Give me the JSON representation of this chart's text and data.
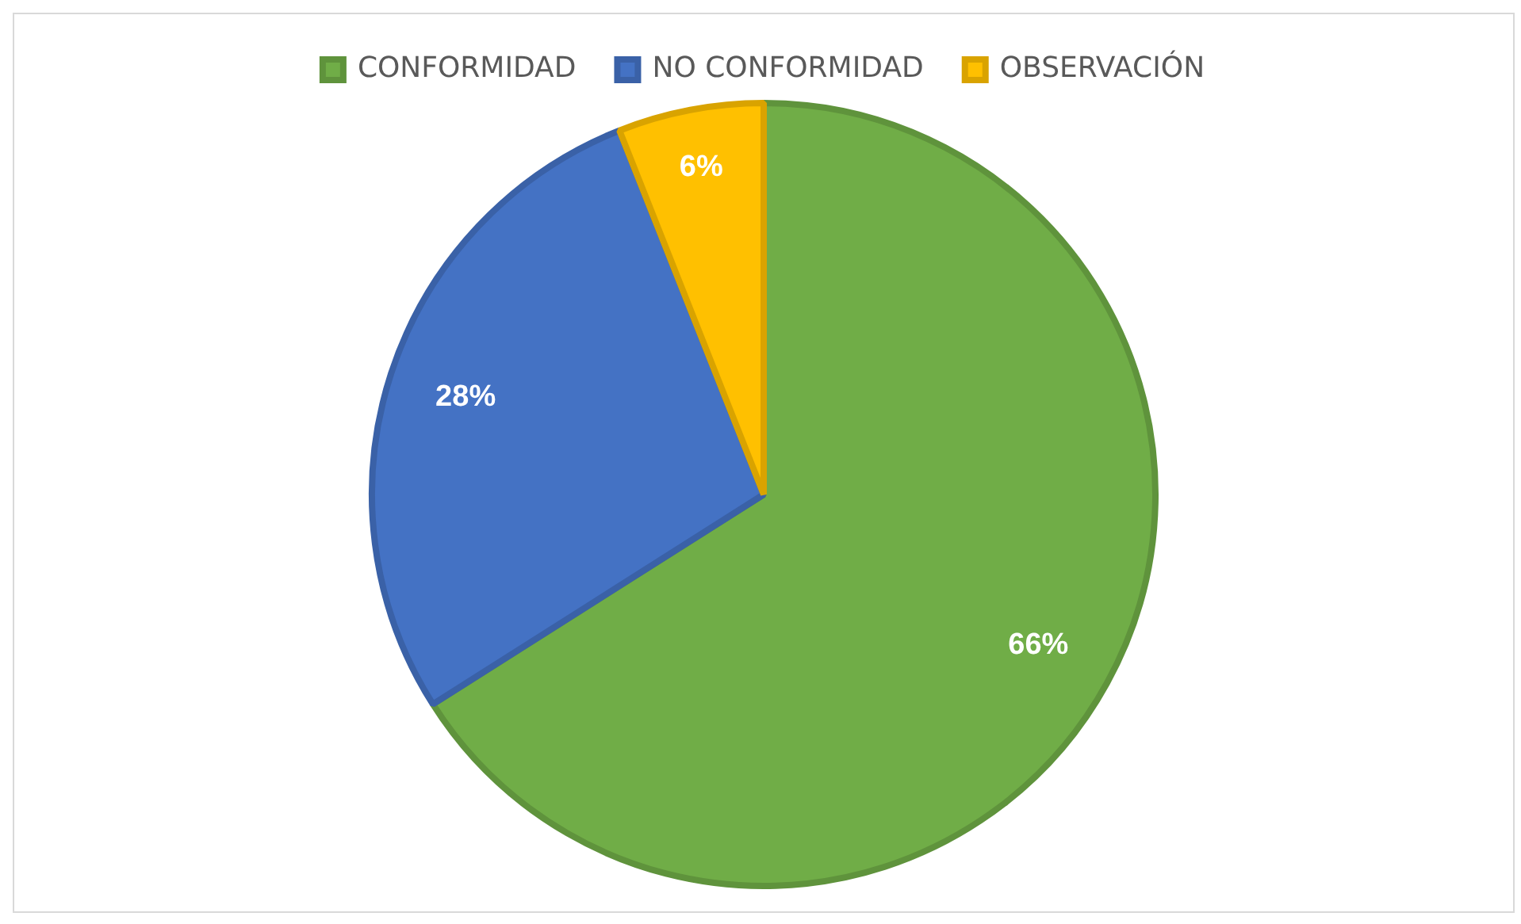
{
  "chart_data": {
    "type": "pie",
    "categories": [
      "CONFORMIDAD",
      "NO CONFORMIDAD",
      "OBSERVACIÓN"
    ],
    "values": [
      66,
      28,
      6
    ],
    "colors": [
      "#70ad47",
      "#4472c4",
      "#ffc000"
    ],
    "value_labels": [
      "66%",
      "28%",
      "6%"
    ],
    "legend": "top"
  }
}
